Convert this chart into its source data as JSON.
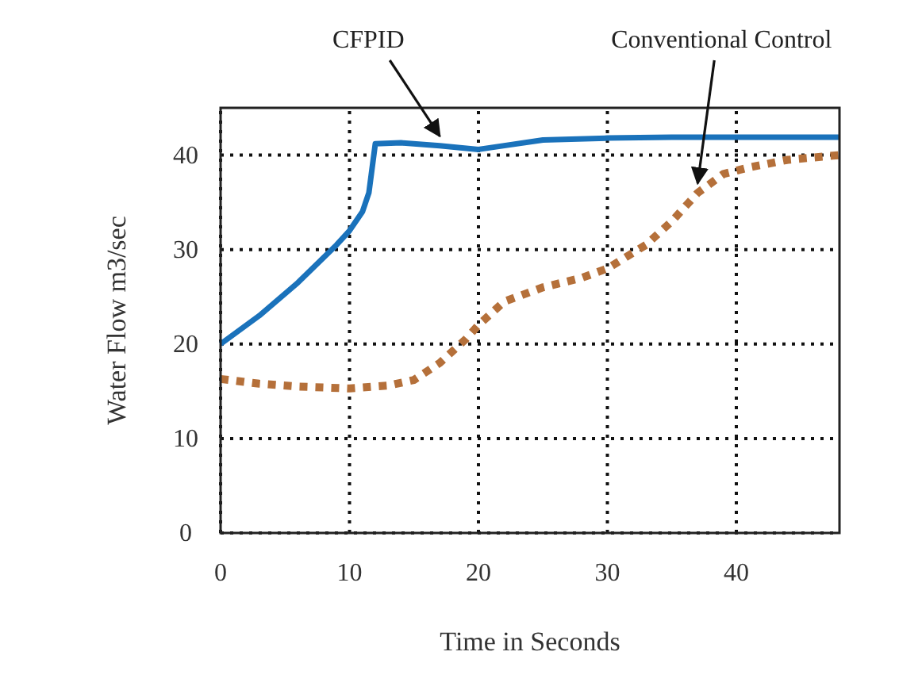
{
  "chart_data": {
    "type": "line",
    "xlabel": "Time in Seconds",
    "ylabel": "Water Flow m3/sec",
    "xlim": [
      0,
      48
    ],
    "ylim": [
      0,
      45
    ],
    "xticks": [
      0,
      10,
      20,
      30,
      40
    ],
    "yticks": [
      0,
      10,
      20,
      30,
      40
    ],
    "grid": true,
    "series": [
      {
        "name": "CFPID",
        "color": "#1a72bb",
        "line_style": "solid",
        "x": [
          0,
          3,
          6,
          9,
          10,
          11,
          11.5,
          12,
          14,
          17,
          20,
          22,
          25,
          30,
          35,
          40,
          45,
          48
        ],
        "values": [
          20,
          23,
          26.5,
          30.5,
          32,
          34,
          36,
          41.2,
          41.3,
          41,
          40.6,
          41,
          41.6,
          41.8,
          41.9,
          41.9,
          41.9,
          41.9
        ]
      },
      {
        "name": "Conventional Control",
        "color": "#b5703a",
        "line_style": "dotted",
        "x": [
          0,
          3,
          6,
          10,
          13,
          15,
          17,
          19,
          20,
          22,
          25,
          28,
          30,
          33,
          35,
          37,
          39,
          41,
          44,
          48
        ],
        "values": [
          16.3,
          15.8,
          15.5,
          15.3,
          15.6,
          16.2,
          18,
          20.5,
          22,
          24.5,
          26,
          27,
          28,
          30.5,
          33,
          36,
          38,
          38.7,
          39.5,
          40
        ]
      }
    ]
  }
}
